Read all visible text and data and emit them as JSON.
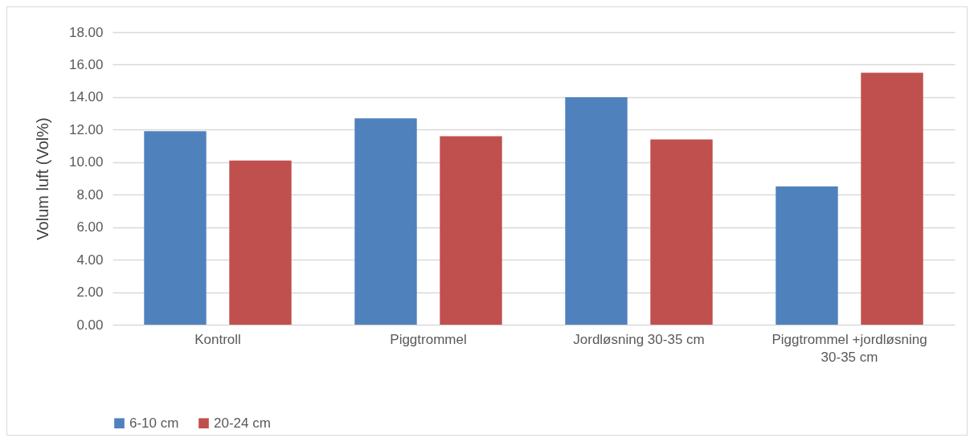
{
  "chart_data": {
    "type": "bar",
    "ylabel": "Volum luft (Vol%)",
    "categories": [
      "Kontroll",
      "Piggtrommel",
      "Jordløsning 30-35 cm",
      "Piggtrommel +jordløsning 30-35 cm"
    ],
    "series": [
      {
        "name": "6-10 cm",
        "color": "#4f81bd",
        "values": [
          11.9,
          12.7,
          14.0,
          8.5
        ]
      },
      {
        "name": "20-24 cm",
        "color": "#c0504d",
        "values": [
          10.1,
          11.6,
          11.4,
          15.5
        ]
      }
    ],
    "ylim": [
      0,
      18
    ],
    "yticks": [
      {
        "value": 0,
        "label": "0.00"
      },
      {
        "value": 2,
        "label": "2.00"
      },
      {
        "value": 4,
        "label": "4.00"
      },
      {
        "value": 6,
        "label": "6.00"
      },
      {
        "value": 8,
        "label": "8.00"
      },
      {
        "value": 10,
        "label": "10.00"
      },
      {
        "value": 12,
        "label": "12.00"
      },
      {
        "value": 14,
        "label": "14.00"
      },
      {
        "value": 16,
        "label": "16.00"
      },
      {
        "value": 18,
        "label": "18.00"
      }
    ],
    "grid": "y",
    "legend": "bottom"
  }
}
